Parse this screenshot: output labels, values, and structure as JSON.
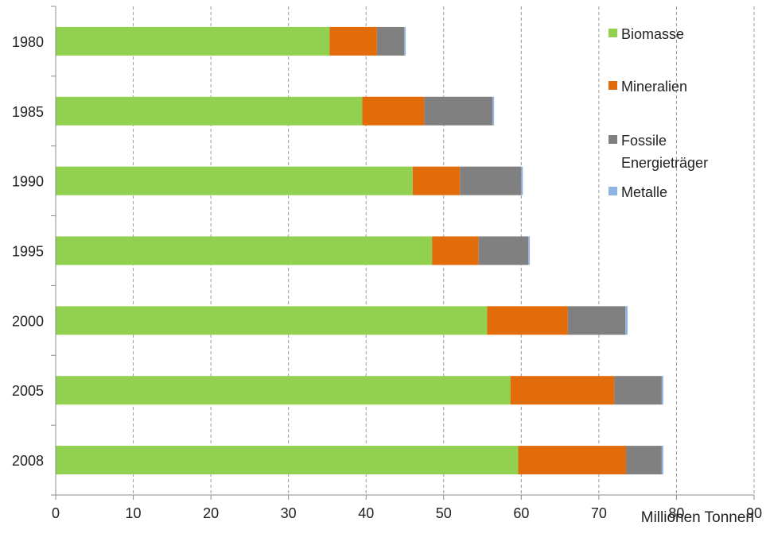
{
  "chart_data": {
    "type": "bar",
    "orientation": "horizontal",
    "stacked": true,
    "categories": [
      "1980",
      "1985",
      "1990",
      "1995",
      "2000",
      "2005",
      "2008"
    ],
    "series": [
      {
        "name": "Biomasse",
        "color": "#92d050",
        "values": [
          35.3,
          39.5,
          46.0,
          48.5,
          55.6,
          58.6,
          59.6
        ]
      },
      {
        "name": "Mineralien",
        "color": "#e36c0a",
        "values": [
          6.1,
          8.0,
          6.1,
          6.0,
          10.4,
          13.4,
          13.9
        ]
      },
      {
        "name": "Fossile Energieträger",
        "color": "#808080",
        "values": [
          3.5,
          8.8,
          7.9,
          6.4,
          7.4,
          6.1,
          4.6
        ]
      },
      {
        "name": "Metalle",
        "color": "#8db4e2",
        "values": [
          0.2,
          0.2,
          0.2,
          0.2,
          0.3,
          0.2,
          0.2
        ]
      }
    ],
    "xlim": [
      0,
      90
    ],
    "xticks": [
      0,
      10,
      20,
      30,
      40,
      50,
      60,
      70,
      80,
      90
    ],
    "xlabel": "Millionen Tonnen",
    "ylabel": "",
    "title": "",
    "grid": "vertical dashed",
    "legend": "top-right"
  }
}
